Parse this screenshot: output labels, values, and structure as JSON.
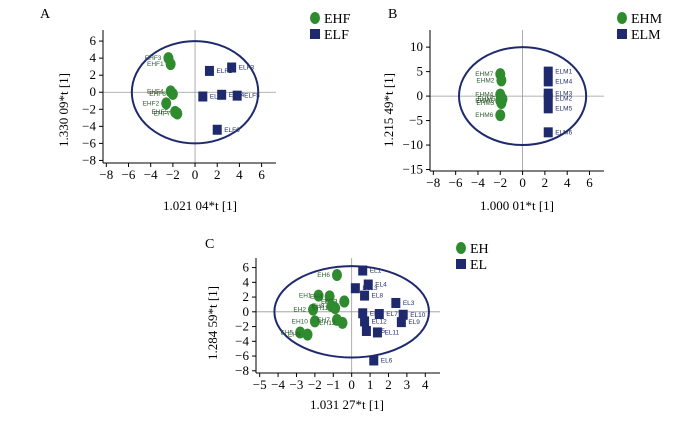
{
  "colors": {
    "circle": "#2e8b2e",
    "square": "#1f2a6e",
    "ellipse": "#1f2a6e"
  },
  "chart_data": [
    {
      "type": "scatter",
      "panel": "A",
      "xlabel": "1.021 04*t [1]",
      "ylabel": "1.330 09*t [1]",
      "xticks": [
        -8,
        -6,
        -4,
        -2,
        0,
        2,
        4,
        6
      ],
      "yticks": [
        -8,
        -6,
        -4,
        -2,
        0,
        2,
        4,
        6
      ],
      "xlim": [
        -8.3,
        7.3
      ],
      "ylim": [
        -8.3,
        7.3
      ],
      "ellipse": {
        "cx": 0,
        "cy": 0,
        "rx": 5.7,
        "ry": 6.0
      },
      "series": [
        {
          "name": "EHF",
          "marker": "circle",
          "points": [
            {
              "label": "EHF3",
              "x": -2.4,
              "y": 4.0
            },
            {
              "label": "EHF1",
              "x": -2.2,
              "y": 3.3
            },
            {
              "label": "EHF4",
              "x": -2.2,
              "y": 0.1
            },
            {
              "label": "EHF6",
              "x": -2.0,
              "y": -0.2
            },
            {
              "label": "EHF2",
              "x": -2.6,
              "y": -1.3
            },
            {
              "label": "EHF7",
              "x": -1.6,
              "y": -2.5
            },
            {
              "label": "EHF5",
              "x": -1.8,
              "y": -2.3
            }
          ]
        },
        {
          "name": "ELF",
          "marker": "square",
          "points": [
            {
              "label": "ELF2",
              "x": 1.3,
              "y": 2.5
            },
            {
              "label": "ELF3",
              "x": 3.3,
              "y": 2.9
            },
            {
              "label": "ELF1",
              "x": 0.7,
              "y": -0.5
            },
            {
              "label": "ELF4",
              "x": 2.4,
              "y": -0.3
            },
            {
              "label": "ELF5",
              "x": 3.8,
              "y": -0.4
            },
            {
              "label": "ELF6",
              "x": 2.0,
              "y": -4.4
            }
          ]
        }
      ]
    },
    {
      "type": "scatter",
      "panel": "B",
      "xlabel": "1.000 01*t [1]",
      "ylabel": "1.215 49*t [1]",
      "xticks": [
        -8,
        -6,
        -4,
        -2,
        0,
        2,
        4,
        6
      ],
      "yticks": [
        -15,
        -10,
        -5,
        0,
        5,
        10
      ],
      "xlim": [
        -8.3,
        7.3
      ],
      "ylim": [
        -15.3,
        13.5
      ],
      "ellipse": {
        "cx": 0,
        "cy": 0,
        "rx": 5.7,
        "ry": 10.0
      },
      "series": [
        {
          "name": "EHM",
          "marker": "circle",
          "points": [
            {
              "label": "EHM7",
              "x": -2.0,
              "y": 4.5
            },
            {
              "label": "EHM2",
              "x": -1.9,
              "y": 3.2
            },
            {
              "label": "EHM4",
              "x": -2.0,
              "y": 0.3
            },
            {
              "label": "EHM5",
              "x": -1.8,
              "y": -0.6
            },
            {
              "label": "EHM3",
              "x": -1.9,
              "y": -1.4
            },
            {
              "label": "EHM1",
              "x": -2.0,
              "y": -0.9
            },
            {
              "label": "EHM6",
              "x": -2.0,
              "y": -3.9
            }
          ]
        },
        {
          "name": "ELM",
          "marker": "square",
          "points": [
            {
              "label": "ELM1",
              "x": 2.3,
              "y": 5.0
            },
            {
              "label": "ELM4",
              "x": 2.3,
              "y": 3.0
            },
            {
              "label": "ELM3",
              "x": 2.3,
              "y": 0.5
            },
            {
              "label": "ELM2",
              "x": 2.3,
              "y": -0.5
            },
            {
              "label": "ELM5",
              "x": 2.3,
              "y": -2.5
            },
            {
              "label": "ELM6",
              "x": 2.3,
              "y": -7.4
            }
          ]
        }
      ]
    },
    {
      "type": "scatter",
      "panel": "C",
      "xlabel": "1.031 27*t [1]",
      "ylabel": "1.284 59*t [1]",
      "xticks": [
        -5,
        -4,
        -3,
        -2,
        -1,
        0,
        1,
        2,
        3,
        4
      ],
      "yticks": [
        -8,
        -6,
        -4,
        -2,
        0,
        2,
        4,
        6
      ],
      "xlim": [
        -5.2,
        4.8
      ],
      "ylim": [
        -8.3,
        7.3
      ],
      "ellipse": {
        "cx": 0,
        "cy": 0,
        "rx": 4.2,
        "ry": 6.2
      },
      "series": [
        {
          "name": "EH",
          "marker": "circle",
          "points": [
            {
              "label": "EH6",
              "x": -0.8,
              "y": 5.0
            },
            {
              "label": "EH1",
              "x": -1.8,
              "y": 2.2
            },
            {
              "label": "EH4",
              "x": -1.2,
              "y": 2.1
            },
            {
              "label": "EH3",
              "x": -0.4,
              "y": 1.4
            },
            {
              "label": "EH13",
              "x": -0.4,
              "y": 1.4
            },
            {
              "label": "EH2",
              "x": -2.1,
              "y": 0.3
            },
            {
              "label": "EH8",
              "x": -1.1,
              "y": 0.8
            },
            {
              "label": "EH11",
              "x": -0.9,
              "y": 0.5
            },
            {
              "label": "EH10",
              "x": -2.0,
              "y": -1.3
            },
            {
              "label": "EH7",
              "x": -0.8,
              "y": -1.1
            },
            {
              "label": "EH12",
              "x": -0.5,
              "y": -1.5
            },
            {
              "label": "EH5",
              "x": -2.8,
              "y": -2.8
            },
            {
              "label": "EH9",
              "x": -2.4,
              "y": -3.1
            }
          ]
        },
        {
          "name": "EL",
          "marker": "square",
          "points": [
            {
              "label": "EL1",
              "x": 0.6,
              "y": 5.6
            },
            {
              "label": "EL4",
              "x": 0.9,
              "y": 3.7
            },
            {
              "label": "EL13",
              "x": 0.2,
              "y": 3.2
            },
            {
              "label": "EL8",
              "x": 0.7,
              "y": 2.2
            },
            {
              "label": "EL3",
              "x": 2.4,
              "y": 1.2
            },
            {
              "label": "EL2",
              "x": 0.6,
              "y": -0.2
            },
            {
              "label": "EL12",
              "x": 0.7,
              "y": -1.3
            },
            {
              "label": "EL7",
              "x": 1.5,
              "y": -0.3
            },
            {
              "label": "EL10",
              "x": 2.8,
              "y": -0.4
            },
            {
              "label": "EL9",
              "x": 2.7,
              "y": -1.4
            },
            {
              "label": "EL5",
              "x": 0.8,
              "y": -2.6
            },
            {
              "label": "EL11",
              "x": 1.4,
              "y": -2.8
            },
            {
              "label": "EL6",
              "x": 1.2,
              "y": -6.6
            }
          ]
        }
      ]
    }
  ]
}
